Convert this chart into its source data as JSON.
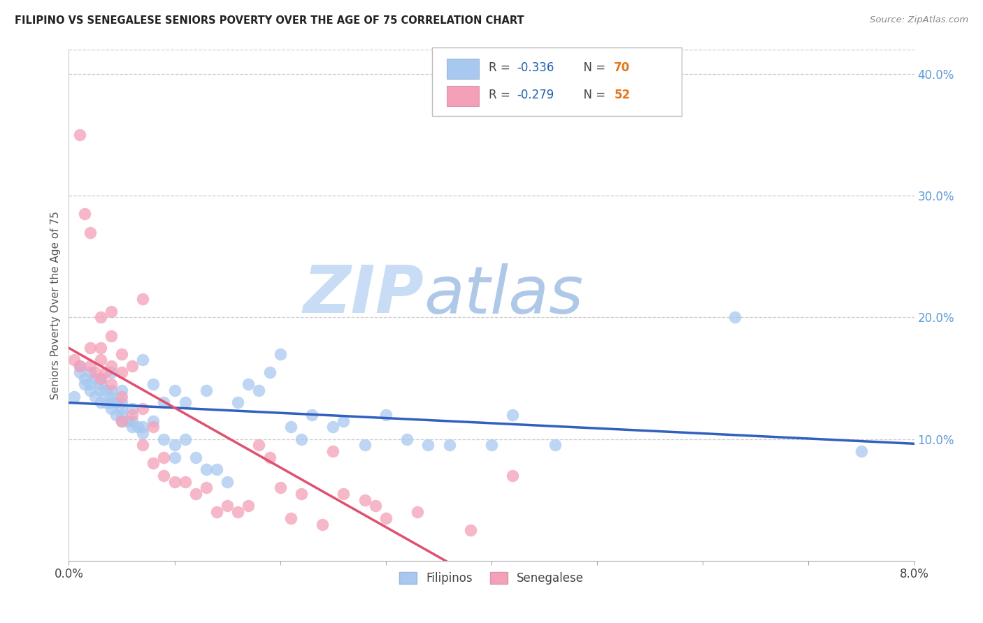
{
  "title": "FILIPINO VS SENEGALESE SENIORS POVERTY OVER THE AGE OF 75 CORRELATION CHART",
  "source": "Source: ZipAtlas.com",
  "ylabel": "Seniors Poverty Over the Age of 75",
  "xlim": [
    0.0,
    0.08
  ],
  "ylim": [
    0.0,
    0.42
  ],
  "filipino_color": "#a8c8f0",
  "senegalese_color": "#f4a0b8",
  "filipino_line_color": "#3060c0",
  "senegalese_line_color": "#e05070",
  "legend_r_color": "#2060b0",
  "legend_n_color": "#2060b0",
  "watermark_zip_color": "#c8ddf5",
  "watermark_atlas_color": "#b0c8e8",
  "R_filipino": "-0.336",
  "N_filipino": "70",
  "R_senegalese": "-0.279",
  "N_senegalese": "52",
  "filipino_x": [
    0.0005,
    0.001,
    0.001,
    0.0015,
    0.0015,
    0.002,
    0.002,
    0.002,
    0.0025,
    0.0025,
    0.003,
    0.003,
    0.003,
    0.003,
    0.0035,
    0.0035,
    0.004,
    0.004,
    0.004,
    0.004,
    0.004,
    0.0045,
    0.0045,
    0.005,
    0.005,
    0.005,
    0.005,
    0.005,
    0.0055,
    0.006,
    0.006,
    0.006,
    0.0065,
    0.007,
    0.007,
    0.007,
    0.008,
    0.008,
    0.009,
    0.009,
    0.01,
    0.01,
    0.01,
    0.011,
    0.011,
    0.012,
    0.013,
    0.013,
    0.014,
    0.015,
    0.016,
    0.017,
    0.018,
    0.019,
    0.02,
    0.021,
    0.022,
    0.023,
    0.025,
    0.026,
    0.028,
    0.03,
    0.032,
    0.034,
    0.036,
    0.04,
    0.042,
    0.046,
    0.063,
    0.075
  ],
  "filipino_y": [
    0.135,
    0.16,
    0.155,
    0.145,
    0.15,
    0.14,
    0.145,
    0.155,
    0.135,
    0.15,
    0.13,
    0.14,
    0.145,
    0.15,
    0.13,
    0.14,
    0.125,
    0.13,
    0.135,
    0.14,
    0.155,
    0.12,
    0.13,
    0.115,
    0.12,
    0.125,
    0.13,
    0.14,
    0.115,
    0.11,
    0.115,
    0.125,
    0.11,
    0.105,
    0.11,
    0.165,
    0.115,
    0.145,
    0.1,
    0.13,
    0.085,
    0.095,
    0.14,
    0.1,
    0.13,
    0.085,
    0.075,
    0.14,
    0.075,
    0.065,
    0.13,
    0.145,
    0.14,
    0.155,
    0.17,
    0.11,
    0.1,
    0.12,
    0.11,
    0.115,
    0.095,
    0.12,
    0.1,
    0.095,
    0.095,
    0.095,
    0.12,
    0.095,
    0.2,
    0.09
  ],
  "senegalese_x": [
    0.0005,
    0.001,
    0.001,
    0.0015,
    0.002,
    0.002,
    0.002,
    0.0025,
    0.003,
    0.003,
    0.003,
    0.003,
    0.0035,
    0.004,
    0.004,
    0.004,
    0.004,
    0.005,
    0.005,
    0.005,
    0.005,
    0.006,
    0.006,
    0.007,
    0.007,
    0.007,
    0.008,
    0.008,
    0.009,
    0.009,
    0.01,
    0.011,
    0.012,
    0.013,
    0.014,
    0.015,
    0.016,
    0.017,
    0.018,
    0.019,
    0.02,
    0.021,
    0.022,
    0.024,
    0.025,
    0.026,
    0.028,
    0.029,
    0.03,
    0.033,
    0.038,
    0.042
  ],
  "senegalese_y": [
    0.165,
    0.35,
    0.16,
    0.285,
    0.16,
    0.27,
    0.175,
    0.155,
    0.15,
    0.165,
    0.175,
    0.2,
    0.155,
    0.145,
    0.16,
    0.185,
    0.205,
    0.115,
    0.135,
    0.155,
    0.17,
    0.12,
    0.16,
    0.095,
    0.125,
    0.215,
    0.08,
    0.11,
    0.07,
    0.085,
    0.065,
    0.065,
    0.055,
    0.06,
    0.04,
    0.045,
    0.04,
    0.045,
    0.095,
    0.085,
    0.06,
    0.035,
    0.055,
    0.03,
    0.09,
    0.055,
    0.05,
    0.045,
    0.035,
    0.04,
    0.025,
    0.07
  ]
}
